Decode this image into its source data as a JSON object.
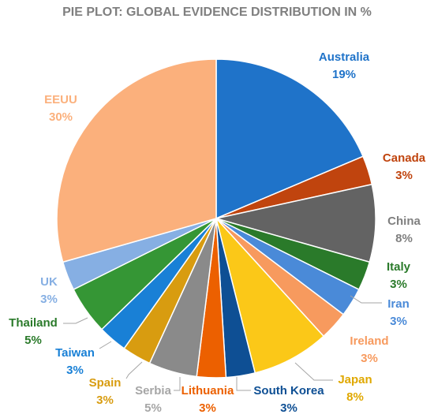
{
  "chart_data": {
    "type": "pie",
    "title": "PIE PLOT: GLOBAL EVIDENCE DISTRIBUTION IN %",
    "unit": "%",
    "slices": [
      {
        "label": "Australia",
        "value": 19,
        "value_label": "19%",
        "color": "#1f73c9"
      },
      {
        "label": "Canada",
        "value": 3,
        "value_label": "3%",
        "color": "#c0440e"
      },
      {
        "label": "China",
        "value": 8,
        "value_label": "8%",
        "color": "#636363"
      },
      {
        "label": "Italy",
        "value": 3,
        "value_label": "3%",
        "color": "#2a7a2a"
      },
      {
        "label": "Iran",
        "value": 3,
        "value_label": "3%",
        "color": "#4a8ad8"
      },
      {
        "label": "Ireland",
        "value": 3,
        "value_label": "3%",
        "color": "#f79a5e"
      },
      {
        "label": "Japan",
        "value": 8,
        "value_label": "8%",
        "color": "#fbc818"
      },
      {
        "label": "South Korea",
        "value": 3,
        "value_label": "3%",
        "color": "#0e4f94"
      },
      {
        "label": "Lithuania",
        "value": 3,
        "value_label": "3%",
        "color": "#ec6000"
      },
      {
        "label": "Serbia",
        "value": 5,
        "value_label": "5%",
        "color": "#8a8a8a"
      },
      {
        "label": "Spain",
        "value": 3,
        "value_label": "3%",
        "color": "#d89c10"
      },
      {
        "label": "Taiwan",
        "value": 3,
        "value_label": "3%",
        "color": "#1980d6"
      },
      {
        "label": "Thailand",
        "value": 5,
        "value_label": "5%",
        "color": "#359635"
      },
      {
        "label": "UK",
        "value": 3,
        "value_label": "3%",
        "color": "#86afe3"
      },
      {
        "label": "EEUU",
        "value": 30,
        "value_label": "30%",
        "color": "#fbb07c"
      }
    ],
    "label_colors": {
      "Australia": "#1f73c9",
      "Canada": "#c0440e",
      "China": "#7f7f7f",
      "Italy": "#2a7a2a",
      "Iran": "#4a8ad8",
      "Ireland": "#f79a5e",
      "Japan": "#e0a800",
      "South Korea": "#0e4f94",
      "Lithuania": "#ec6000",
      "Serbia": "#a6a6a6",
      "Spain": "#d89c10",
      "Taiwan": "#1980d6",
      "Thailand": "#2a7a2a",
      "UK": "#86afe3",
      "EEUU": "#fbb07c"
    }
  }
}
